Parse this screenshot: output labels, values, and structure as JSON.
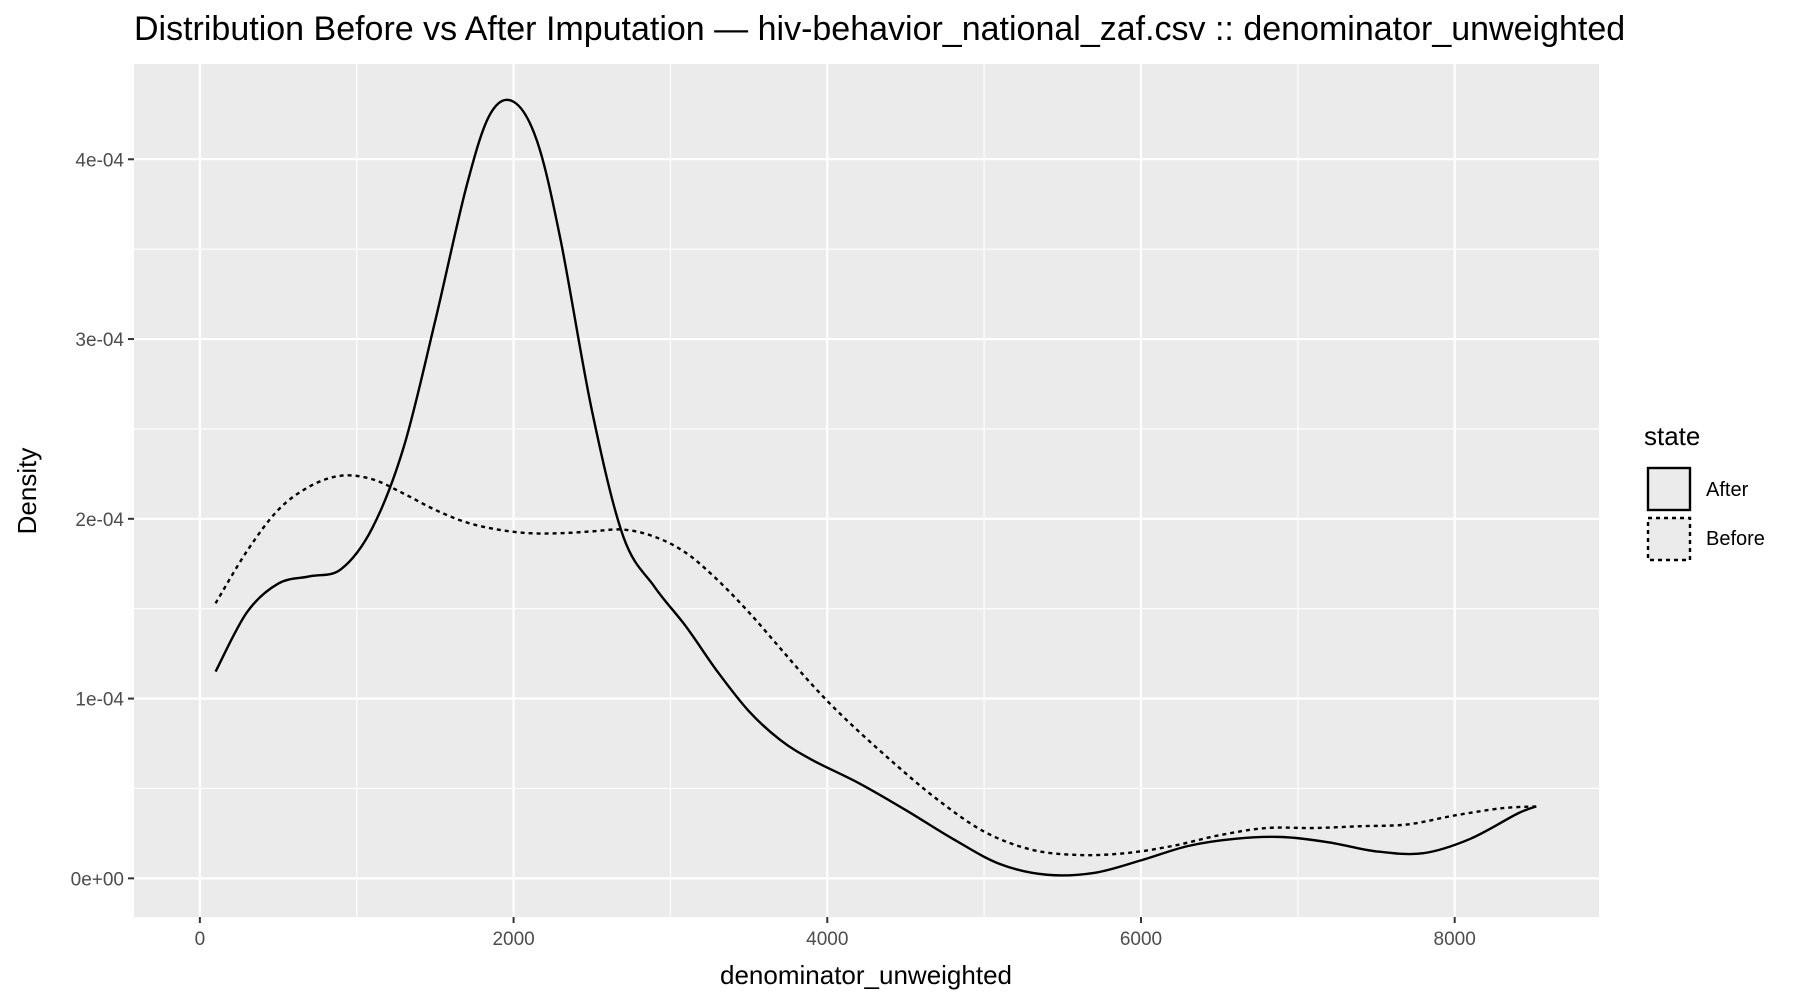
{
  "chart_data": {
    "type": "line",
    "title": "Distribution Before vs After Imputation — hiv-behavior_national_zaf.csv :: denominator_unweighted",
    "xlabel": "denominator_unweighted",
    "ylabel": "Density",
    "xlim": [
      -420,
      8920
    ],
    "ylim": [
      -2.15e-05,
      0.000453
    ],
    "x_ticks": [
      0,
      2000,
      4000,
      6000,
      8000
    ],
    "x_tick_labels": [
      "0",
      "2000",
      "4000",
      "6000",
      "8000"
    ],
    "y_ticks": [
      0,
      0.0001,
      0.0002,
      0.0003,
      0.0004
    ],
    "y_tick_labels": [
      "0e+00",
      "1e-04",
      "2e-04",
      "3e-04",
      "4e-04"
    ],
    "grid": true,
    "legend": {
      "title": "state",
      "position": "right"
    },
    "series": [
      {
        "name": "After",
        "line_style": "solid",
        "x": [
          100,
          300,
          500,
          700,
          900,
          1100,
          1300,
          1500,
          1700,
          1850,
          2000,
          2150,
          2300,
          2500,
          2700,
          2900,
          3100,
          3300,
          3500,
          3700,
          3900,
          4200,
          4500,
          4800,
          5100,
          5400,
          5700,
          6000,
          6300,
          6600,
          6900,
          7200,
          7500,
          7800,
          8100,
          8400,
          8520
        ],
        "values": [
          0.000115,
          0.000148,
          0.000164,
          0.000168,
          0.000172,
          0.000195,
          0.00024,
          0.00031,
          0.000385,
          0.000425,
          0.000432,
          0.00041,
          0.000355,
          0.00026,
          0.00019,
          0.000162,
          0.00014,
          0.000115,
          9.3e-05,
          7.7e-05,
          6.6e-05,
          5.3e-05,
          3.8e-05,
          2.2e-05,
          8e-06,
          2e-06,
          3e-06,
          1e-05,
          1.8e-05,
          2.2e-05,
          2.3e-05,
          2e-05,
          1.5e-05,
          1.4e-05,
          2.2e-05,
          3.6e-05,
          4e-05
        ]
      },
      {
        "name": "Before",
        "line_style": "dotted",
        "x": [
          100,
          300,
          500,
          700,
          900,
          1100,
          1300,
          1500,
          1700,
          1900,
          2100,
          2300,
          2500,
          2700,
          2900,
          3100,
          3300,
          3500,
          3700,
          3900,
          4100,
          4400,
          4700,
          5000,
          5300,
          5600,
          5900,
          6200,
          6500,
          6800,
          7100,
          7400,
          7700,
          8000,
          8300,
          8520
        ],
        "values": [
          0.000153,
          0.000182,
          0.000205,
          0.000218,
          0.000224,
          0.000222,
          0.000214,
          0.000205,
          0.000198,
          0.000194,
          0.000192,
          0.000192,
          0.000193,
          0.000194,
          0.00019,
          0.000181,
          0.000166,
          0.000148,
          0.000128,
          0.000108,
          9e-05,
          6.6e-05,
          4.4e-05,
          2.6e-05,
          1.6e-05,
          1.3e-05,
          1.4e-05,
          1.8e-05,
          2.4e-05,
          2.8e-05,
          2.8e-05,
          2.9e-05,
          3e-05,
          3.5e-05,
          3.9e-05,
          4e-05
        ]
      }
    ]
  }
}
